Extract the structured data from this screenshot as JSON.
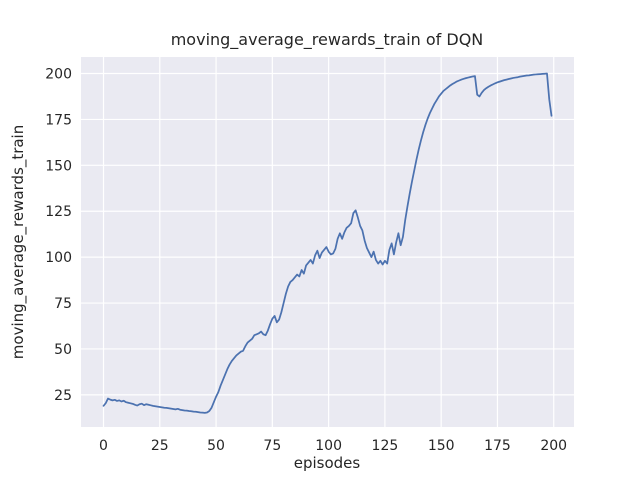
{
  "figure": {
    "background": "#ffffff"
  },
  "chart_data": {
    "type": "line",
    "title": "moving_average_rewards_train of DQN",
    "xlabel": "episodes",
    "ylabel": "moving_average_rewards_train",
    "xlim": [
      -10,
      209
    ],
    "ylim": [
      7.5,
      209
    ],
    "xticks": [
      0,
      25,
      50,
      75,
      100,
      125,
      150,
      175,
      200
    ],
    "yticks": [
      25,
      50,
      75,
      100,
      125,
      150,
      175,
      200
    ],
    "grid": true,
    "legend_position": "none",
    "plot_bg": "#eaeaf2",
    "grid_color": "#ffffff",
    "text_color": "#262626",
    "series": [
      {
        "name": "moving_average_rewards_train",
        "color": "#4c72b0",
        "x": {
          "start": 0,
          "step": 1,
          "end": 199
        },
        "y": [
          19.0,
          20.5,
          23.0,
          22.4,
          22.0,
          22.3,
          21.7,
          22.0,
          21.4,
          21.8,
          21.0,
          20.7,
          20.4,
          20.1,
          19.6,
          19.2,
          19.9,
          20.2,
          19.4,
          19.9,
          19.6,
          19.3,
          19.0,
          18.8,
          18.6,
          18.4,
          18.2,
          18.0,
          17.9,
          17.7,
          17.5,
          17.3,
          17.1,
          17.4,
          16.9,
          16.7,
          16.5,
          16.4,
          16.2,
          16.1,
          15.9,
          15.8,
          15.6,
          15.4,
          15.3,
          15.2,
          15.4,
          16.2,
          18.0,
          21.0,
          24.0,
          26.5,
          30.0,
          33.0,
          36.0,
          39.0,
          41.5,
          43.5,
          45.0,
          46.5,
          47.5,
          48.5,
          49.0,
          51.5,
          53.5,
          54.5,
          55.5,
          57.5,
          58.0,
          58.5,
          59.5,
          58.0,
          57.5,
          60.0,
          63.5,
          66.5,
          68.0,
          64.5,
          66.0,
          70.0,
          75.0,
          80.0,
          84.0,
          86.5,
          87.5,
          89.0,
          90.5,
          89.5,
          93.0,
          91.0,
          95.5,
          97.0,
          98.5,
          96.5,
          101.0,
          103.5,
          99.5,
          102.5,
          104.0,
          105.5,
          103.0,
          101.5,
          102.0,
          104.5,
          110.0,
          113.0,
          110.0,
          113.5,
          116.0,
          117.0,
          118.5,
          124.0,
          125.5,
          121.5,
          117.0,
          114.5,
          109.0,
          105.0,
          102.5,
          100.0,
          103.0,
          98.5,
          96.5,
          98.0,
          96.0,
          98.0,
          96.5,
          104.0,
          107.5,
          101.5,
          108.0,
          113.0,
          106.5,
          111.0,
          120.0,
          127.5,
          134.5,
          141.0,
          147.0,
          153.0,
          158.5,
          163.5,
          168.0,
          172.0,
          175.5,
          178.5,
          181.0,
          183.5,
          185.5,
          187.5,
          189.0,
          190.5,
          191.5,
          192.5,
          193.5,
          194.3,
          195.0,
          195.7,
          196.2,
          196.7,
          197.1,
          197.5,
          197.8,
          198.1,
          198.4,
          198.6,
          188.5,
          187.5,
          189.5,
          191.0,
          192.0,
          192.8,
          193.5,
          194.1,
          194.7,
          195.2,
          195.6,
          196.0,
          196.4,
          196.7,
          197.0,
          197.3,
          197.6,
          197.8,
          198.0,
          198.3,
          198.5,
          198.7,
          198.9,
          199.0,
          199.2,
          199.4,
          199.5,
          199.6,
          199.7,
          199.8,
          199.9,
          200.0,
          186.0,
          177.0
        ]
      }
    ]
  }
}
